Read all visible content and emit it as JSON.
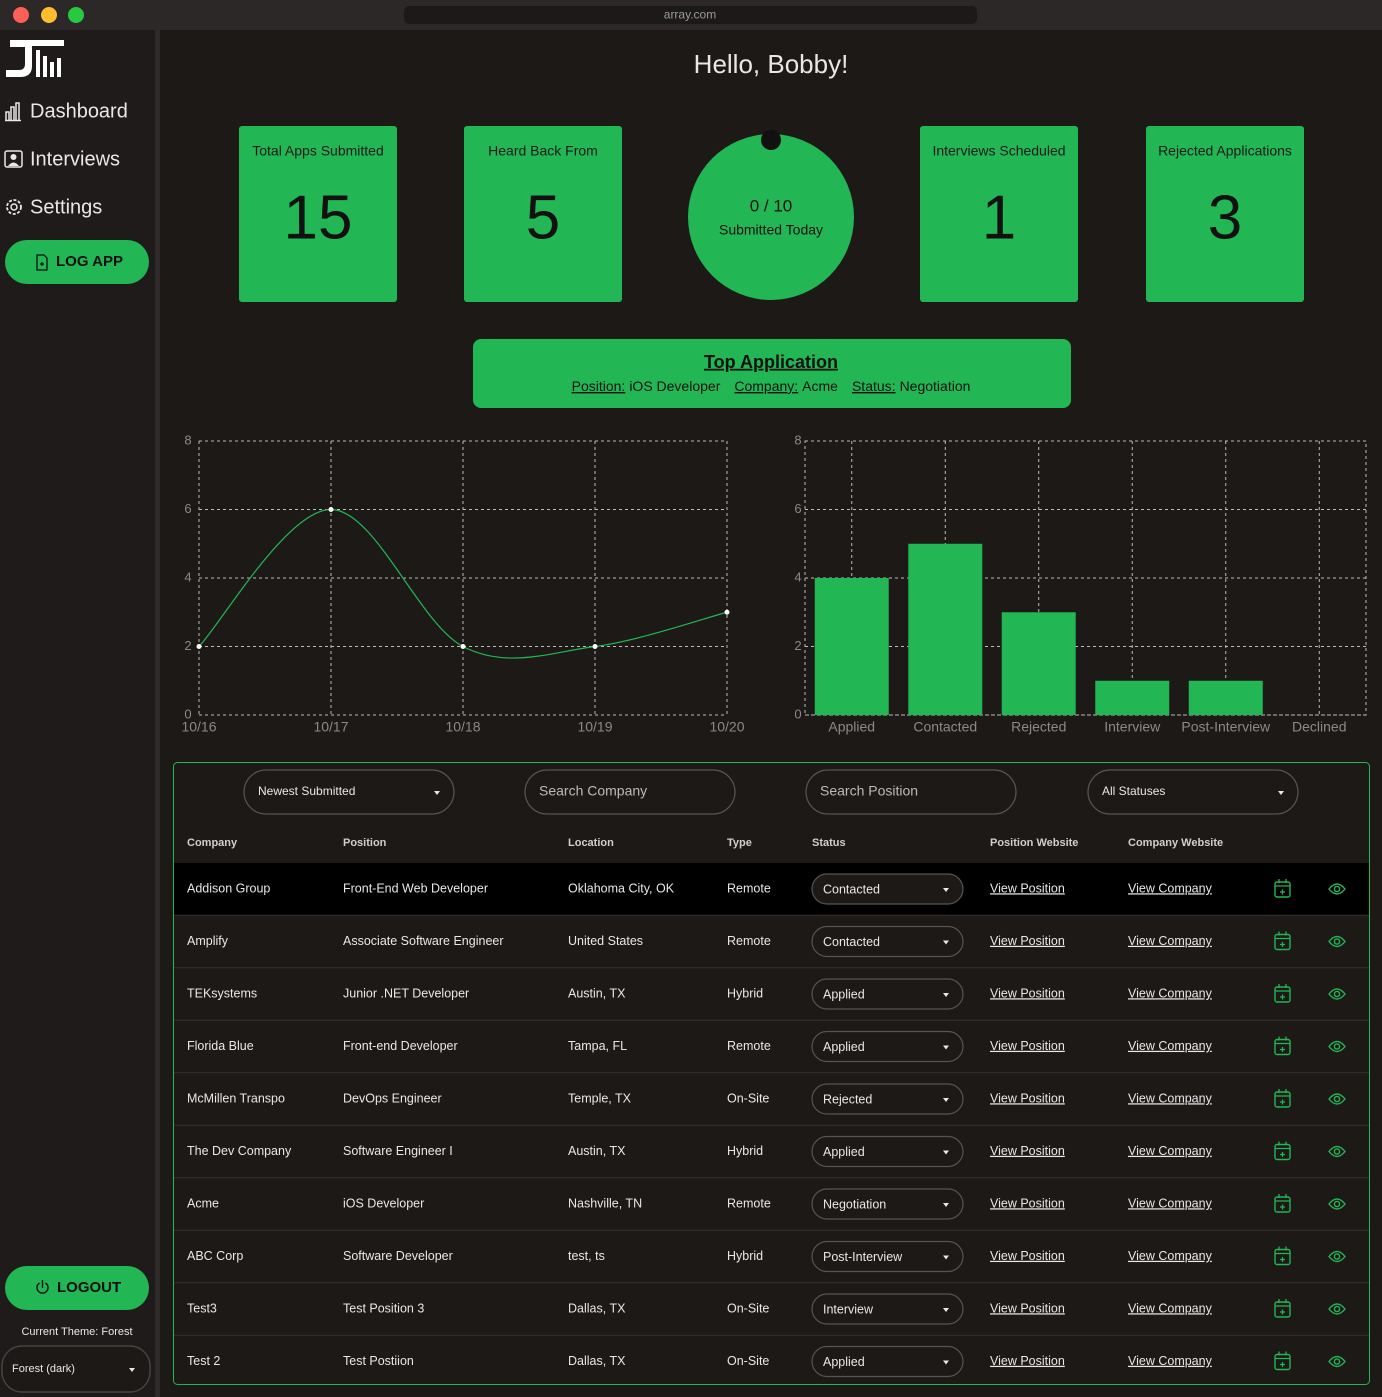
{
  "browser": {
    "url": "array.com"
  },
  "sidebar": {
    "nav": [
      "Dashboard",
      "Interviews",
      "Settings"
    ],
    "log_app": "LOG APP",
    "logout": "LOGOUT",
    "theme_label": "Current Theme: Forest",
    "theme_select": "Forest (dark)"
  },
  "greeting": "Hello, Bobby!",
  "stats": [
    {
      "label": "Total Apps Submitted",
      "value": 15
    },
    {
      "label": "Heard Back From",
      "value": 5
    },
    {
      "label": "Interviews Scheduled",
      "value": 1
    },
    {
      "label": "Rejected Applications",
      "value": 3
    }
  ],
  "daily_goal": {
    "progress": "0 / 10",
    "label": "Submitted Today"
  },
  "top_application": {
    "title": "Top Application",
    "fields": [
      {
        "label": "Position:",
        "value": "iOS Developer"
      },
      {
        "label": "Company:",
        "value": "Acme"
      },
      {
        "label": "Status:",
        "value": "Negotiation"
      }
    ]
  },
  "chart_data": [
    {
      "type": "line",
      "categories": [
        "10/16",
        "10/17",
        "10/18",
        "10/19",
        "10/20"
      ],
      "values": [
        2,
        6,
        2,
        2,
        3
      ],
      "color": "#22b655",
      "ylim": [
        0,
        8
      ],
      "yticks": [
        0,
        2,
        4,
        6,
        8
      ],
      "grid": true
    },
    {
      "type": "bar",
      "categories": [
        "Applied",
        "Contacted",
        "Rejected",
        "Interview",
        "Post-Interview",
        "Declined"
      ],
      "values": [
        4,
        5,
        3,
        1,
        1,
        0
      ],
      "color": "#22b655",
      "ylim": [
        0,
        8
      ],
      "yticks": [
        0,
        2,
        4,
        6,
        8
      ],
      "grid": true
    }
  ],
  "filters": {
    "sort": "Newest Submitted",
    "company_placeholder": "Search Company",
    "position_placeholder": "Search Position",
    "status": "All Statuses"
  },
  "table": {
    "columns": [
      "Company",
      "Position",
      "Location",
      "Type",
      "Status",
      "Position Website",
      "Company Website"
    ],
    "rows": [
      [
        "Addison Group",
        "Front-End Web Developer",
        "Oklahoma City, OK",
        "Remote",
        "Contacted",
        "View Position",
        "View Company"
      ],
      [
        "Amplify",
        "Associate Software Engineer",
        "United States",
        "Remote",
        "Contacted",
        "View Position",
        "View Company"
      ],
      [
        "TEKsystems",
        "Junior .NET Developer",
        "Austin, TX",
        "Hybrid",
        "Applied",
        "View Position",
        "View Company"
      ],
      [
        "Florida Blue",
        "Front-end Developer",
        "Tampa, FL",
        "Remote",
        "Applied",
        "View Position",
        "View Company"
      ],
      [
        "McMillen Transpo",
        "DevOps Engineer",
        "Temple, TX",
        "On-Site",
        "Rejected",
        "View Position",
        "View Company"
      ],
      [
        "The Dev Company",
        "Software Engineer I",
        "Austin, TX",
        "Hybrid",
        "Applied",
        "View Position",
        "View Company"
      ],
      [
        "Acme",
        "iOS Developer",
        "Nashville, TN",
        "Remote",
        "Negotiation",
        "View Position",
        "View Company"
      ],
      [
        "ABC Corp",
        "Software Developer",
        "test, ts",
        "Hybrid",
        "Post-Interview",
        "View Position",
        "View Company"
      ],
      [
        "Test3",
        "Test Position 3",
        "Dallas, TX",
        "On-Site",
        "Interview",
        "View Position",
        "View Company"
      ],
      [
        "Test 2",
        "Test Postiion",
        "Dallas, TX",
        "On-Site",
        "Applied",
        "View Position",
        "View Company"
      ]
    ]
  }
}
